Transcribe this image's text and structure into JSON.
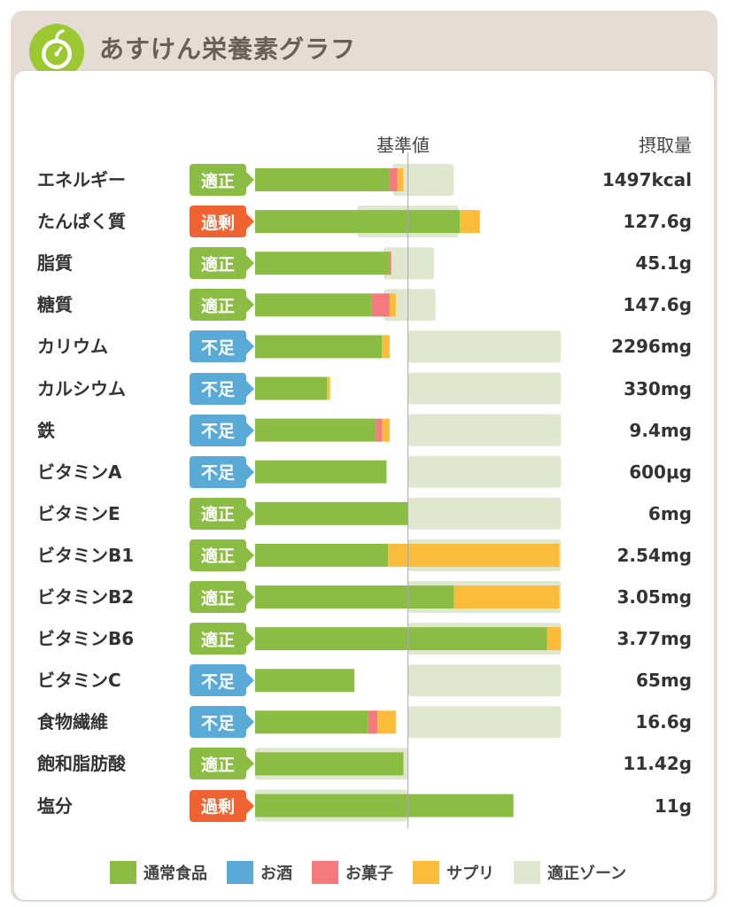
{
  "header": {
    "title": "あすけん栄養素グラフ",
    "logo_icon": "apple-scale-icon"
  },
  "columns": {
    "reference": "基準値",
    "intake": "摂取量"
  },
  "colors": {
    "normal_food": "#8bbd44",
    "alcohol": "#5aaad8",
    "snacks": "#f57a7e",
    "supplement": "#fbbc3c",
    "appropriate_zone": "#dfe8cf",
    "status_ok": "#8bbd44",
    "status_low": "#5aaad8",
    "status_over": "#ef6332"
  },
  "legend": [
    {
      "label": "通常食品",
      "color": "#8bbd44"
    },
    {
      "label": "お酒",
      "color": "#5aaad8"
    },
    {
      "label": "お菓子",
      "color": "#f57a7e"
    },
    {
      "label": "サプリ",
      "color": "#fbbc3c"
    },
    {
      "label": "適正ゾーン",
      "color": "#dfe8cf"
    }
  ],
  "chart_data": {
    "type": "bar",
    "orientation": "horizontal",
    "stacked": true,
    "value_unit": "percent_of_reference",
    "reference_value": 100,
    "series": [
      {
        "name": "通常食品",
        "color": "#8bbd44"
      },
      {
        "name": "お酒",
        "color": "#5aaad8"
      },
      {
        "name": "お菓子",
        "color": "#f57a7e"
      },
      {
        "name": "サプリ",
        "color": "#fbbc3c"
      }
    ],
    "rows": [
      {
        "label": "エネルギー",
        "status": "適正",
        "status_type": "ok",
        "intake": "1497kcal",
        "zone": [
          90,
          130
        ],
        "normal": 88,
        "alcohol": 0,
        "snacks": 5,
        "supplement": 4
      },
      {
        "label": "たんぱく質",
        "status": "過剰",
        "status_type": "over",
        "intake": "127.6g",
        "zone": [
          67,
          133
        ],
        "normal": 134,
        "alcohol": 0,
        "snacks": 0,
        "supplement": 13
      },
      {
        "label": "脂質",
        "status": "適正",
        "status_type": "ok",
        "intake": "45.1g",
        "zone": [
          84,
          117
        ],
        "normal": 88,
        "alcohol": 0,
        "snacks": 1,
        "supplement": 0
      },
      {
        "label": "糖質",
        "status": "適正",
        "status_type": "ok",
        "intake": "147.6g",
        "zone": [
          84,
          118
        ],
        "normal": 76,
        "alcohol": 0,
        "snacks": 12,
        "supplement": 4
      },
      {
        "label": "カリウム",
        "status": "不足",
        "status_type": "low",
        "intake": "2296mg",
        "zone": [
          100,
          200
        ],
        "normal": 83,
        "alcohol": 0,
        "snacks": 0,
        "supplement": 5
      },
      {
        "label": "カルシウム",
        "status": "不足",
        "status_type": "low",
        "intake": "330mg",
        "zone": [
          100,
          200
        ],
        "normal": 47,
        "alcohol": 0,
        "snacks": 0,
        "supplement": 2
      },
      {
        "label": "鉄",
        "status": "不足",
        "status_type": "low",
        "intake": "9.4mg",
        "zone": [
          100,
          200
        ],
        "normal": 79,
        "alcohol": 0,
        "snacks": 4,
        "supplement": 5
      },
      {
        "label": "ビタミンA",
        "status": "不足",
        "status_type": "low",
        "intake": "600μg",
        "zone": [
          100,
          200
        ],
        "normal": 86,
        "alcohol": 0,
        "snacks": 0,
        "supplement": 0
      },
      {
        "label": "ビタミンE",
        "status": "適正",
        "status_type": "ok",
        "intake": "6mg",
        "zone": [
          100,
          200
        ],
        "normal": 100,
        "alcohol": 0,
        "snacks": 0,
        "supplement": 0
      },
      {
        "label": "ビタミンB1",
        "status": "適正",
        "status_type": "ok",
        "intake": "2.54mg",
        "zone": [
          100,
          200
        ],
        "normal": 87,
        "alcohol": 0,
        "snacks": 0,
        "supplement": 112
      },
      {
        "label": "ビタミンB2",
        "status": "適正",
        "status_type": "ok",
        "intake": "3.05mg",
        "zone": [
          100,
          200
        ],
        "normal": 130,
        "alcohol": 0,
        "snacks": 0,
        "supplement": 69
      },
      {
        "label": "ビタミンB6",
        "status": "適正",
        "status_type": "ok",
        "intake": "3.77mg",
        "zone": [
          100,
          200
        ],
        "normal": 191,
        "alcohol": 0,
        "snacks": 0,
        "supplement": 9
      },
      {
        "label": "ビタミンC",
        "status": "不足",
        "status_type": "low",
        "intake": "65mg",
        "zone": [
          100,
          200
        ],
        "normal": 65,
        "alcohol": 0,
        "snacks": 0,
        "supplement": 0
      },
      {
        "label": "食物繊維",
        "status": "不足",
        "status_type": "low",
        "intake": "16.6g",
        "zone": [
          100,
          200
        ],
        "normal": 74,
        "alcohol": 0,
        "snacks": 6,
        "supplement": 12
      },
      {
        "label": "飽和脂肪酸",
        "status": "適正",
        "status_type": "ok",
        "intake": "11.42g",
        "zone": [
          0,
          100
        ],
        "normal": 97,
        "alcohol": 0,
        "snacks": 0,
        "supplement": 0
      },
      {
        "label": "塩分",
        "status": "過剰",
        "status_type": "over",
        "intake": "11g",
        "zone": [
          0,
          100
        ],
        "normal": 169,
        "alcohol": 0,
        "snacks": 0,
        "supplement": 0
      }
    ]
  }
}
